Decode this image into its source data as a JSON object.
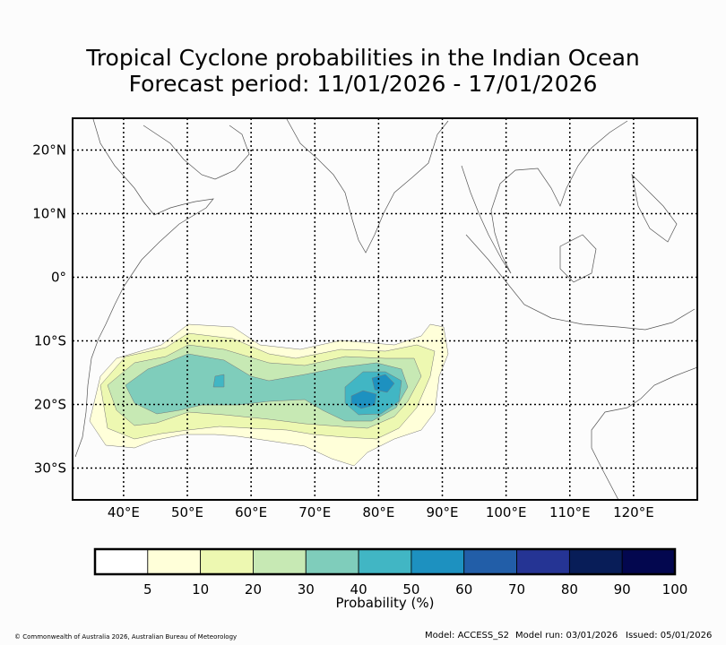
{
  "title_line1": "Tropical Cyclone probabilities in the Indian Ocean",
  "title_line2": "Forecast period: 11/01/2026 - 17/01/2026",
  "map": {
    "lon_range": [
      32,
      130
    ],
    "lat_range": [
      -35,
      25
    ],
    "lon_ticks": [
      {
        "value": 40,
        "label": "40°E"
      },
      {
        "value": 50,
        "label": "50°E"
      },
      {
        "value": 60,
        "label": "60°E"
      },
      {
        "value": 70,
        "label": "70°E"
      },
      {
        "value": 80,
        "label": "80°E"
      },
      {
        "value": 90,
        "label": "90°E"
      },
      {
        "value": 100,
        "label": "100°E"
      },
      {
        "value": 110,
        "label": "110°E"
      },
      {
        "value": 120,
        "label": "120°E"
      }
    ],
    "lat_ticks": [
      {
        "value": 20,
        "label": "20°N"
      },
      {
        "value": 10,
        "label": "10°N"
      },
      {
        "value": 0,
        "label": "0°"
      },
      {
        "value": -10,
        "label": "10°S"
      },
      {
        "value": -20,
        "label": "20°S"
      },
      {
        "value": -30,
        "label": "30°S"
      }
    ]
  },
  "colorbar": {
    "label": "Probability (%)",
    "ticks": [
      "5",
      "10",
      "20",
      "30",
      "40",
      "50",
      "60",
      "70",
      "80",
      "90",
      "100"
    ],
    "colors": [
      "#ffffff",
      "#ffffd9",
      "#edf8b1",
      "#c7e9b4",
      "#7fcdbb",
      "#41b6c4",
      "#1d91c0",
      "#225ea8",
      "#253494",
      "#081d58",
      "#03074f"
    ]
  },
  "footer": {
    "copyright": "© Commonwealth of Australia 2026, Australian Bureau of Meteorology",
    "model": "Model: ACCESS_S2",
    "model_run": "Model run: 03/01/2026",
    "issued": "Issued: 05/01/2026"
  }
}
